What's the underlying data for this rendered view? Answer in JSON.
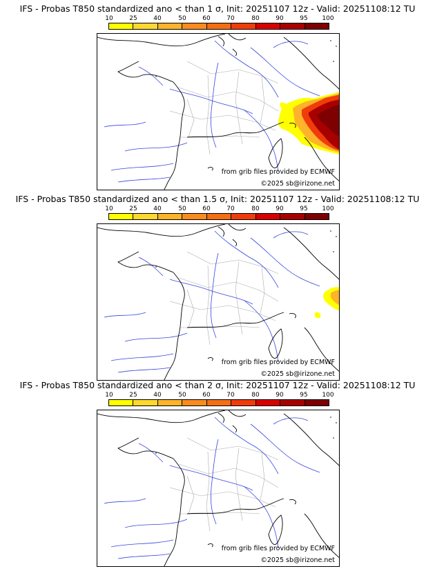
{
  "colorbar": {
    "ticks": [
      "10",
      "25",
      "40",
      "50",
      "60",
      "70",
      "80",
      "90",
      "95",
      "100"
    ],
    "colors": [
      "#ffff00",
      "#fed82e",
      "#fdb32a",
      "#fa8c1f",
      "#f46e14",
      "#f03c0a",
      "#d90000",
      "#a80000",
      "#7e0000"
    ]
  },
  "map": {
    "credit_source": "from grib files provided by ECMWF",
    "credit_copyright": "©2025 sb@irizone.net",
    "land_color": "#ffffff",
    "border_color": "#000000",
    "river_color": "#3344dd",
    "region_color": "#aaaaaa"
  },
  "panels": [
    {
      "title": "IFS - Probas T850  standardized ano < than 1 σ, Init: 20251107 12z - Valid: 20251108:12 TU",
      "threshold": "1 σ",
      "anomaly_extent": "large"
    },
    {
      "title": "IFS - Probas T850  standardized ano < than 1.5 σ, Init: 20251107 12z - Valid: 20251108:12 TU",
      "threshold": "1.5 σ",
      "anomaly_extent": "small"
    },
    {
      "title": "IFS - Probas T850  standardized ano < than 2 σ, Init: 20251107 12z - Valid: 20251108:12 TU",
      "threshold": "2 σ",
      "anomaly_extent": "none"
    }
  ]
}
